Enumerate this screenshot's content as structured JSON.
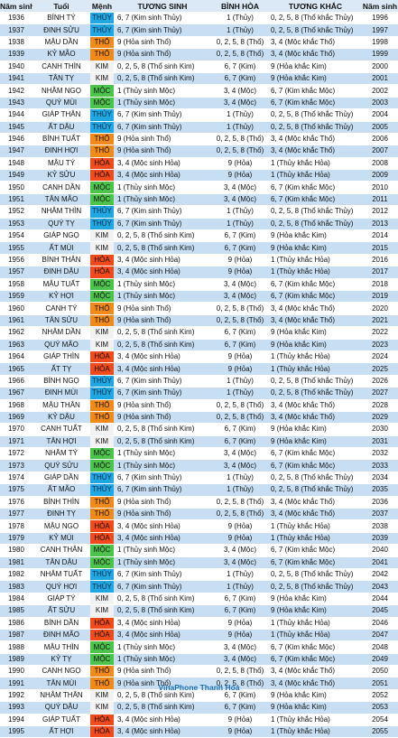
{
  "headers": [
    "Năm sinh",
    "Tuổi",
    "Mệnh",
    "TƯƠNG SINH",
    "BÌNH HÒA",
    "TƯƠNG KHẮC",
    "Năm sinh"
  ],
  "footer": "VinaPhone Thanh Hóa",
  "element_colors": {
    "KIM": "#f2f2f2",
    "THỦY": "#1ea7e1",
    "MỘC": "#4cc44c",
    "HỎA": "#f24a1a",
    "THỔ": "#f28a1a"
  },
  "rows": [
    {
      "y1": "1936",
      "name": "BÍNH TÝ",
      "menh": "THỦY",
      "ts": "6, 7 (Kim sinh Thủy)",
      "bh": "1 (Thủy)",
      "tk": "0, 2, 5, 8 (Thổ khắc Thủy)",
      "y2": "1996"
    },
    {
      "y1": "1937",
      "name": "ĐINH SỬU",
      "menh": "THỦY",
      "ts": "6, 7 (Kim sinh Thủy)",
      "bh": "1 (Thủy)",
      "tk": "0, 2, 5, 8 (Thổ khắc Thủy)",
      "y2": "1997"
    },
    {
      "y1": "1938",
      "name": "MẬU DẦN",
      "menh": "THỔ",
      "ts": "9 (Hỏa sinh Thổ)",
      "bh": "0, 2, 5, 8 (Thổ)",
      "tk": "3, 4 (Mộc khắc Thổ)",
      "y2": "1998"
    },
    {
      "y1": "1939",
      "name": "KỶ MÃO",
      "menh": "THỔ",
      "ts": "9 (Hỏa sinh Thổ)",
      "bh": "0, 2, 5, 8 (Thổ)",
      "tk": "3, 4 (Mộc khắc Thổ)",
      "y2": "1999"
    },
    {
      "y1": "1940",
      "name": "CANH THÌN",
      "menh": "KIM",
      "ts": "0, 2, 5, 8 (Thổ sinh Kim)",
      "bh": "6, 7 (Kim)",
      "tk": "9 (Hỏa khắc Kim)",
      "y2": "2000"
    },
    {
      "y1": "1941",
      "name": "TÂN TỴ",
      "menh": "KIM",
      "ts": "0, 2, 5, 8 (Thổ sinh Kim)",
      "bh": "6, 7 (Kim)",
      "tk": "9 (Hỏa khắc Kim)",
      "y2": "2001"
    },
    {
      "y1": "1942",
      "name": "NHÂM NGỌ",
      "menh": "MỘC",
      "ts": "1 (Thủy sinh Mộc)",
      "bh": "3, 4 (Mộc)",
      "tk": "6, 7 (Kim khắc Mộc)",
      "y2": "2002"
    },
    {
      "y1": "1943",
      "name": "QUÝ MÙI",
      "menh": "MỘC",
      "ts": "1 (Thủy sinh Mộc)",
      "bh": "3, 4 (Mộc)",
      "tk": "6, 7 (Kim khắc Mộc)",
      "y2": "2003"
    },
    {
      "y1": "1944",
      "name": "GIÁP THÂN",
      "menh": "THỦY",
      "ts": "6, 7 (Kim sinh Thủy)",
      "bh": "1 (Thủy)",
      "tk": "0, 2, 5, 8 (Thổ khắc Thủy)",
      "y2": "2004"
    },
    {
      "y1": "1945",
      "name": "ẤT DẬU",
      "menh": "THỦY",
      "ts": "6, 7 (Kim sinh Thủy)",
      "bh": "1 (Thủy)",
      "tk": "0, 2, 5, 8 (Thổ khắc Thủy)",
      "y2": "2005"
    },
    {
      "y1": "1946",
      "name": "BÍNH TUẤT",
      "menh": "THỔ",
      "ts": "9 (Hỏa sinh Thổ)",
      "bh": "0, 2, 5, 8 (Thổ)",
      "tk": "3, 4 (Mộc khắc Thổ)",
      "y2": "2006"
    },
    {
      "y1": "1947",
      "name": "ĐINH HỢI",
      "menh": "THỔ",
      "ts": "9 (Hỏa sinh Thổ)",
      "bh": "0, 2, 5, 8 (Thổ)",
      "tk": "3, 4 (Mộc khắc Thổ)",
      "y2": "2007"
    },
    {
      "y1": "1948",
      "name": "MẬU TÝ",
      "menh": "HỎA",
      "ts": "3, 4 (Mộc sinh Hỏa)",
      "bh": "9 (Hỏa)",
      "tk": "1 (Thủy khắc Hỏa)",
      "y2": "2008"
    },
    {
      "y1": "1949",
      "name": "KỶ SỬU",
      "menh": "HỎA",
      "ts": "3, 4 (Mộc sinh Hỏa)",
      "bh": "9 (Hỏa)",
      "tk": "1 (Thủy khắc Hỏa)",
      "y2": "2009"
    },
    {
      "y1": "1950",
      "name": "CANH DẦN",
      "menh": "MỘC",
      "ts": "1 (Thủy sinh Mộc)",
      "bh": "3, 4 (Mộc)",
      "tk": "6, 7 (Kim khắc Mộc)",
      "y2": "2010"
    },
    {
      "y1": "1951",
      "name": "TÂN MÃO",
      "menh": "MỘC",
      "ts": "1 (Thủy sinh Mộc)",
      "bh": "3, 4 (Mộc)",
      "tk": "6, 7 (Kim khắc Mộc)",
      "y2": "2011"
    },
    {
      "y1": "1952",
      "name": "NHÂM THÌN",
      "menh": "THỦY",
      "ts": "6, 7 (Kim sinh Thủy)",
      "bh": "1 (Thủy)",
      "tk": "0, 2, 5, 8 (Thổ khắc Thủy)",
      "y2": "2012"
    },
    {
      "y1": "1953",
      "name": "QUÝ TỴ",
      "menh": "THỦY",
      "ts": "6, 7 (Kim sinh Thủy)",
      "bh": "1 (Thủy)",
      "tk": "0, 2, 5, 8 (Thổ khắc Thủy)",
      "y2": "2013"
    },
    {
      "y1": "1954",
      "name": "GIÁP NGỌ",
      "menh": "KIM",
      "ts": "0, 2, 5, 8 (Thổ sinh Kim)",
      "bh": "6, 7 (Kim)",
      "tk": "9 (Hỏa khắc Kim)",
      "y2": "2014"
    },
    {
      "y1": "1955",
      "name": "ẤT MÙI",
      "menh": "KIM",
      "ts": "0, 2, 5, 8 (Thổ sinh Kim)",
      "bh": "6, 7 (Kim)",
      "tk": "9 (Hỏa khắc Kim)",
      "y2": "2015"
    },
    {
      "y1": "1956",
      "name": "BÍNH THÂN",
      "menh": "HỎA",
      "ts": "3, 4 (Mộc sinh Hỏa)",
      "bh": "9 (Hỏa)",
      "tk": "1 (Thủy khắc Hỏa)",
      "y2": "2016"
    },
    {
      "y1": "1957",
      "name": "ĐINH DẬU",
      "menh": "HỎA",
      "ts": "3, 4 (Mộc sinh Hỏa)",
      "bh": "9 (Hỏa)",
      "tk": "1 (Thủy khắc Hỏa)",
      "y2": "2017"
    },
    {
      "y1": "1958",
      "name": "MẬU TUẤT",
      "menh": "MỘC",
      "ts": "1 (Thủy sinh Mộc)",
      "bh": "3, 4 (Mộc)",
      "tk": "6, 7 (Kim khắc Mộc)",
      "y2": "2018"
    },
    {
      "y1": "1959",
      "name": "KỶ HỢI",
      "menh": "MỘC",
      "ts": "1 (Thủy sinh Mộc)",
      "bh": "3, 4 (Mộc)",
      "tk": "6, 7 (Kim khắc Mộc)",
      "y2": "2019"
    },
    {
      "y1": "1960",
      "name": "CANH TÝ",
      "menh": "THỔ",
      "ts": "9 (Hỏa sinh Thổ)",
      "bh": "0, 2, 5, 8 (Thổ)",
      "tk": "3, 4 (Mộc khắc Thổ)",
      "y2": "2020"
    },
    {
      "y1": "1961",
      "name": "TÂN SỬU",
      "menh": "THỔ",
      "ts": "9 (Hỏa sinh Thổ)",
      "bh": "0, 2, 5, 8 (Thổ)",
      "tk": "3, 4 (Mộc khắc Thổ)",
      "y2": "2021"
    },
    {
      "y1": "1962",
      "name": "NHÂM DẦN",
      "menh": "KIM",
      "ts": "0, 2, 5, 8 (Thổ sinh Kim)",
      "bh": "6, 7 (Kim)",
      "tk": "9 (Hỏa khắc Kim)",
      "y2": "2022"
    },
    {
      "y1": "1963",
      "name": "QUÝ MÃO",
      "menh": "KIM",
      "ts": "0, 2, 5, 8 (Thổ sinh Kim)",
      "bh": "6, 7 (Kim)",
      "tk": "9 (Hỏa khắc Kim)",
      "y2": "2023"
    },
    {
      "y1": "1964",
      "name": "GIÁP THÌN",
      "menh": "HỎA",
      "ts": "3, 4 (Mộc sinh Hỏa)",
      "bh": "9 (Hỏa)",
      "tk": "1 (Thủy khắc Hỏa)",
      "y2": "2024"
    },
    {
      "y1": "1965",
      "name": "ẤT TỴ",
      "menh": "HỎA",
      "ts": "3, 4 (Mộc sinh Hỏa)",
      "bh": "9 (Hỏa)",
      "tk": "1 (Thủy khắc Hỏa)",
      "y2": "2025"
    },
    {
      "y1": "1966",
      "name": "BÍNH NGỌ",
      "menh": "THỦY",
      "ts": "6, 7 (Kim sinh Thủy)",
      "bh": "1 (Thủy)",
      "tk": "0, 2, 5, 8 (Thổ khắc Thủy)",
      "y2": "2026"
    },
    {
      "y1": "1967",
      "name": "ĐINH MÙI",
      "menh": "THỦY",
      "ts": "6, 7 (Kim sinh Thủy)",
      "bh": "1 (Thủy)",
      "tk": "0, 2, 5, 8 (Thổ khắc Thủy)",
      "y2": "2027"
    },
    {
      "y1": "1968",
      "name": "MẬU THÂN",
      "menh": "THỔ",
      "ts": "9 (Hỏa sinh Thổ)",
      "bh": "0, 2, 5, 8 (Thổ)",
      "tk": "3, 4 (Mộc khắc Thổ)",
      "y2": "2028"
    },
    {
      "y1": "1969",
      "name": "KỶ DẬU",
      "menh": "THỔ",
      "ts": "9 (Hỏa sinh Thổ)",
      "bh": "0, 2, 5, 8 (Thổ)",
      "tk": "3, 4 (Mộc khắc Thổ)",
      "y2": "2029"
    },
    {
      "y1": "1970",
      "name": "CANH TUẤT",
      "menh": "KIM",
      "ts": "0, 2, 5, 8 (Thổ sinh Kim)",
      "bh": "6, 7 (Kim)",
      "tk": "9 (Hỏa khắc Kim)",
      "y2": "2030"
    },
    {
      "y1": "1971",
      "name": "TÂN HỢI",
      "menh": "KIM",
      "ts": "0, 2, 5, 8 (Thổ sinh Kim)",
      "bh": "6, 7 (Kim)",
      "tk": "9 (Hỏa khắc Kim)",
      "y2": "2031"
    },
    {
      "y1": "1972",
      "name": "NHÂM TÝ",
      "menh": "MỘC",
      "ts": "1 (Thủy sinh Mộc)",
      "bh": "3, 4 (Mộc)",
      "tk": "6, 7 (Kim khắc Mộc)",
      "y2": "2032"
    },
    {
      "y1": "1973",
      "name": "QUÝ SỬU",
      "menh": "MỘC",
      "ts": "1 (Thủy sinh Mộc)",
      "bh": "3, 4 (Mộc)",
      "tk": "6, 7 (Kim khắc Mộc)",
      "y2": "2033"
    },
    {
      "y1": "1974",
      "name": "GIÁP DẦN",
      "menh": "THỦY",
      "ts": "6, 7 (Kim sinh Thủy)",
      "bh": "1 (Thủy)",
      "tk": "0, 2, 5, 8 (Thổ khắc Thủy)",
      "y2": "2034"
    },
    {
      "y1": "1975",
      "name": "ẤT MÃO",
      "menh": "THỦY",
      "ts": "6, 7 (Kim sinh Thủy)",
      "bh": "1 (Thủy)",
      "tk": "0, 2, 5, 8 (Thổ khắc Thủy)",
      "y2": "2035"
    },
    {
      "y1": "1976",
      "name": "BÍNH THÌN",
      "menh": "THỔ",
      "ts": "9 (Hỏa sinh Thổ)",
      "bh": "0, 2, 5, 8 (Thổ)",
      "tk": "3, 4 (Mộc khắc Thổ)",
      "y2": "2036"
    },
    {
      "y1": "1977",
      "name": "ĐINH TỴ",
      "menh": "THỔ",
      "ts": "9 (Hỏa sinh Thổ)",
      "bh": "0, 2, 5, 8 (Thổ)",
      "tk": "3, 4 (Mộc khắc Thổ)",
      "y2": "2037"
    },
    {
      "y1": "1978",
      "name": "MẬU NGỌ",
      "menh": "HỎA",
      "ts": "3, 4 (Mộc sinh Hỏa)",
      "bh": "9 (Hỏa)",
      "tk": "1 (Thủy khắc Hỏa)",
      "y2": "2038"
    },
    {
      "y1": "1979",
      "name": "KỶ MÙI",
      "menh": "HỎA",
      "ts": "3, 4 (Mộc sinh Hỏa)",
      "bh": "9 (Hỏa)",
      "tk": "1 (Thủy khắc Hỏa)",
      "y2": "2039"
    },
    {
      "y1": "1980",
      "name": "CANH THÂN",
      "menh": "MỘC",
      "ts": "1 (Thủy sinh Mộc)",
      "bh": "3, 4 (Mộc)",
      "tk": "6, 7 (Kim khắc Mộc)",
      "y2": "2040"
    },
    {
      "y1": "1981",
      "name": "TÂN DẬU",
      "menh": "MỘC",
      "ts": "1 (Thủy sinh Mộc)",
      "bh": "3, 4 (Mộc)",
      "tk": "6, 7 (Kim khắc Mộc)",
      "y2": "2041"
    },
    {
      "y1": "1982",
      "name": "NHÂM TUẤT",
      "menh": "THỦY",
      "ts": "6, 7 (Kim sinh Thủy)",
      "bh": "1 (Thủy)",
      "tk": "0, 2, 5, 8 (Thổ khắc Thủy)",
      "y2": "2042"
    },
    {
      "y1": "1983",
      "name": "QUÝ HỢI",
      "menh": "THỦY",
      "ts": "6, 7 (Kim sinh Thủy)",
      "bh": "1 (Thủy)",
      "tk": "0, 2, 5, 8 (Thổ khắc Thủy)",
      "y2": "2043"
    },
    {
      "y1": "1984",
      "name": "GIÁP TÝ",
      "menh": "KIM",
      "ts": "0, 2, 5, 8 (Thổ sinh Kim)",
      "bh": "6, 7 (Kim)",
      "tk": "9 (Hỏa khắc Kim)",
      "y2": "2044"
    },
    {
      "y1": "1985",
      "name": "ẤT SỬU",
      "menh": "KIM",
      "ts": "0, 2, 5, 8 (Thổ sinh Kim)",
      "bh": "6, 7 (Kim)",
      "tk": "9 (Hỏa khắc Kim)",
      "y2": "2045"
    },
    {
      "y1": "1986",
      "name": "BÍNH DẦN",
      "menh": "HỎA",
      "ts": "3, 4 (Mộc sinh Hỏa)",
      "bh": "9 (Hỏa)",
      "tk": "1 (Thủy khắc Hỏa)",
      "y2": "2046"
    },
    {
      "y1": "1987",
      "name": "ĐINH MÃO",
      "menh": "HỎA",
      "ts": "3, 4 (Mộc sinh Hỏa)",
      "bh": "9 (Hỏa)",
      "tk": "1 (Thủy khắc Hỏa)",
      "y2": "2047"
    },
    {
      "y1": "1988",
      "name": "MẬU THÌN",
      "menh": "MỘC",
      "ts": "1 (Thủy sinh Mộc)",
      "bh": "3, 4 (Mộc)",
      "tk": "6, 7 (Kim khắc Mộc)",
      "y2": "2048"
    },
    {
      "y1": "1989",
      "name": "KỶ TỴ",
      "menh": "MỘC",
      "ts": "1 (Thủy sinh Mộc)",
      "bh": "3, 4 (Mộc)",
      "tk": "6, 7 (Kim khắc Mộc)",
      "y2": "2049"
    },
    {
      "y1": "1990",
      "name": "CANH NGỌ",
      "menh": "THỔ",
      "ts": "9 (Hỏa sinh Thổ)",
      "bh": "0, 2, 5, 8 (Thổ)",
      "tk": "3, 4 (Mộc khắc Thổ)",
      "y2": "2050"
    },
    {
      "y1": "1991",
      "name": "TÂN MÙI",
      "menh": "THỔ",
      "ts": "9 (Hỏa sinh Thổ)",
      "bh": "0, 2, 5, 8 (Thổ)",
      "tk": "3, 4 (Mộc khắc Thổ)",
      "y2": "2051"
    },
    {
      "y1": "1992",
      "name": "NHÂM THÂN",
      "menh": "KIM",
      "ts": "0, 2, 5, 8 (Thổ sinh Kim)",
      "bh": "6, 7 (Kim)",
      "tk": "9 (Hỏa khắc Kim)",
      "y2": "2052"
    },
    {
      "y1": "1993",
      "name": "QUÝ DẬU",
      "menh": "KIM",
      "ts": "0, 2, 5, 8 (Thổ sinh Kim)",
      "bh": "6, 7 (Kim)",
      "tk": "9 (Hỏa khắc Kim)",
      "y2": "2053"
    },
    {
      "y1": "1994",
      "name": "GIÁP TUẤT",
      "menh": "HỎA",
      "ts": "3, 4 (Mộc sinh Hỏa)",
      "bh": "9 (Hỏa)",
      "tk": "1 (Thủy khắc Hỏa)",
      "y2": "2054"
    },
    {
      "y1": "1995",
      "name": "ẤT HỢI",
      "menh": "HỎA",
      "ts": "3, 4 (Mộc sinh Hỏa)",
      "bh": "9 (Hỏa)",
      "tk": "1 (Thủy khắc Hỏa)",
      "y2": "2055"
    }
  ]
}
